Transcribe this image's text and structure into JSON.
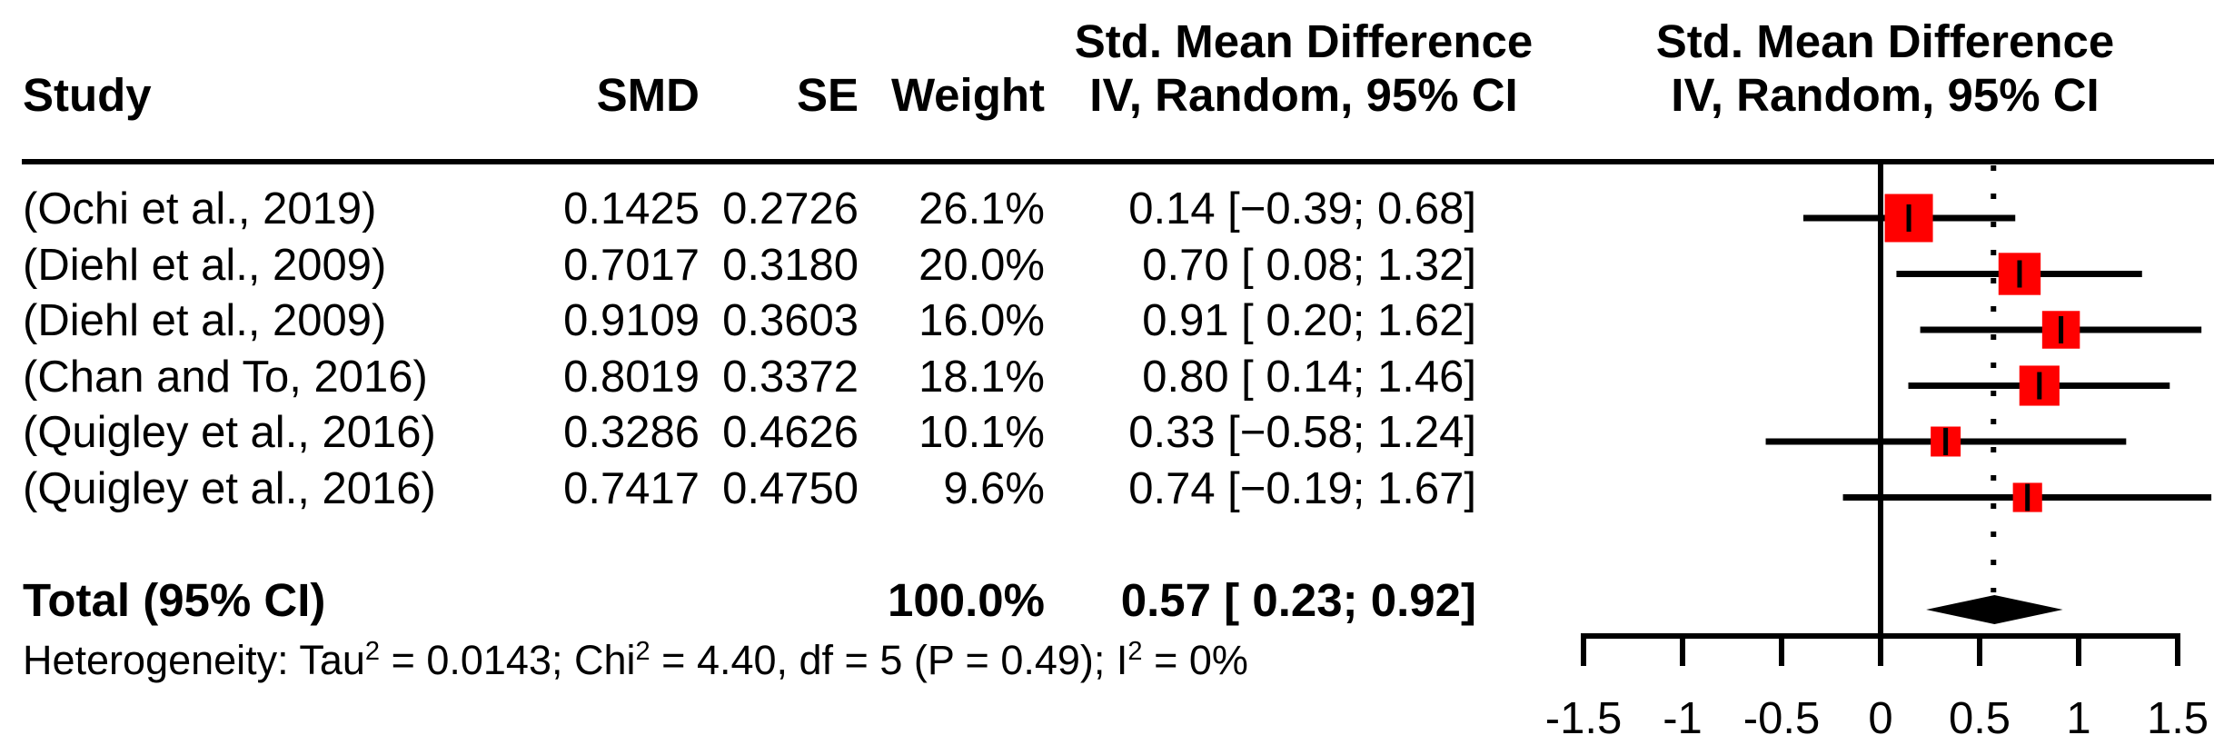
{
  "figure": {
    "header": {
      "study": "Study",
      "smd": "SMD",
      "se": "SE",
      "weight": "Weight",
      "ci_line1": "Std. Mean Difference",
      "ci_line2": "IV, Random, 95% CI",
      "plot_line1": "Std. Mean Difference",
      "plot_line2": "IV, Random, 95% CI"
    },
    "rows": [
      {
        "study": "(Ochi et al., 2019)",
        "smd": "0.1425",
        "se": "0.2726",
        "weight": "26.1%",
        "ci": "0.14 [−0.39; 0.68]"
      },
      {
        "study": "(Diehl et al., 2009)",
        "smd": "0.7017",
        "se": "0.3180",
        "weight": "20.0%",
        "ci": "0.70 [ 0.08; 1.32]"
      },
      {
        "study": "(Diehl et al., 2009)",
        "smd": "0.9109",
        "se": "0.3603",
        "weight": "16.0%",
        "ci": "0.91 [ 0.20; 1.62]"
      },
      {
        "study": "(Chan and To, 2016)",
        "smd": "0.8019",
        "se": "0.3372",
        "weight": "18.1%",
        "ci": "0.80 [ 0.14; 1.46]"
      },
      {
        "study": "(Quigley et al., 2016)",
        "smd": "0.3286",
        "se": "0.4626",
        "weight": "10.1%",
        "ci": "0.33 [−0.58; 1.24]"
      },
      {
        "study": "(Quigley et al., 2016)",
        "smd": "0.7417",
        "se": "0.4750",
        "weight": "9.6%",
        "ci": "0.74 [−0.19; 1.67]"
      }
    ],
    "total": {
      "label": "Total (95% CI)",
      "weight": "100.0%",
      "ci": "0.57 [ 0.23; 0.92]"
    },
    "heterogeneity": {
      "segments": [
        {
          "text": "Heterogeneity: Tau",
          "sup": false
        },
        {
          "text": "2",
          "sup": true
        },
        {
          "text": " = 0.0143; Chi",
          "sup": false
        },
        {
          "text": "2",
          "sup": true
        },
        {
          "text": " = 4.40, df = 5 (P = 0.49); I",
          "sup": false
        },
        {
          "text": "2",
          "sup": true
        },
        {
          "text": " = 0%",
          "sup": false
        }
      ]
    }
  },
  "chart_data": {
    "type": "scatter",
    "variant": "forest-plot",
    "title": "Std. Mean Difference, IV, Random, 95% CI",
    "xlabel": "",
    "ylabel": "",
    "xlim": [
      -1.5,
      1.5
    ],
    "grid": false,
    "legend": false,
    "reference_x": 0,
    "pooled_dotted_x": 0.57,
    "xticks": [
      -1.5,
      -1,
      -0.5,
      0,
      0.5,
      1,
      1.5
    ],
    "xtick_labels": [
      "-1.5",
      "-1",
      "-0.5",
      "0",
      "0.5",
      "1",
      "1.5"
    ],
    "series": [
      {
        "name": "(Ochi et al., 2019)",
        "estimate": 0.1425,
        "ci_lower": -0.39,
        "ci_upper": 0.68,
        "weight_pct": 26.1
      },
      {
        "name": "(Diehl et al., 2009)",
        "estimate": 0.7017,
        "ci_lower": 0.08,
        "ci_upper": 1.32,
        "weight_pct": 20.0
      },
      {
        "name": "(Diehl et al., 2009)",
        "estimate": 0.9109,
        "ci_lower": 0.2,
        "ci_upper": 1.62,
        "weight_pct": 16.0
      },
      {
        "name": "(Chan and To, 2016)",
        "estimate": 0.8019,
        "ci_lower": 0.14,
        "ci_upper": 1.46,
        "weight_pct": 18.1
      },
      {
        "name": "(Quigley et al., 2016)",
        "estimate": 0.3286,
        "ci_lower": -0.58,
        "ci_upper": 1.24,
        "weight_pct": 10.1
      },
      {
        "name": "(Quigley et al., 2016)",
        "estimate": 0.7417,
        "ci_lower": -0.19,
        "ci_upper": 1.67,
        "weight_pct": 9.6
      }
    ],
    "total": {
      "estimate": 0.57,
      "ci_lower": 0.23,
      "ci_upper": 0.92,
      "weight_pct": 100.0
    }
  },
  "colors": {
    "marker_red": "#FF0000",
    "ink": "#000000",
    "background": "#FFFFFF"
  }
}
